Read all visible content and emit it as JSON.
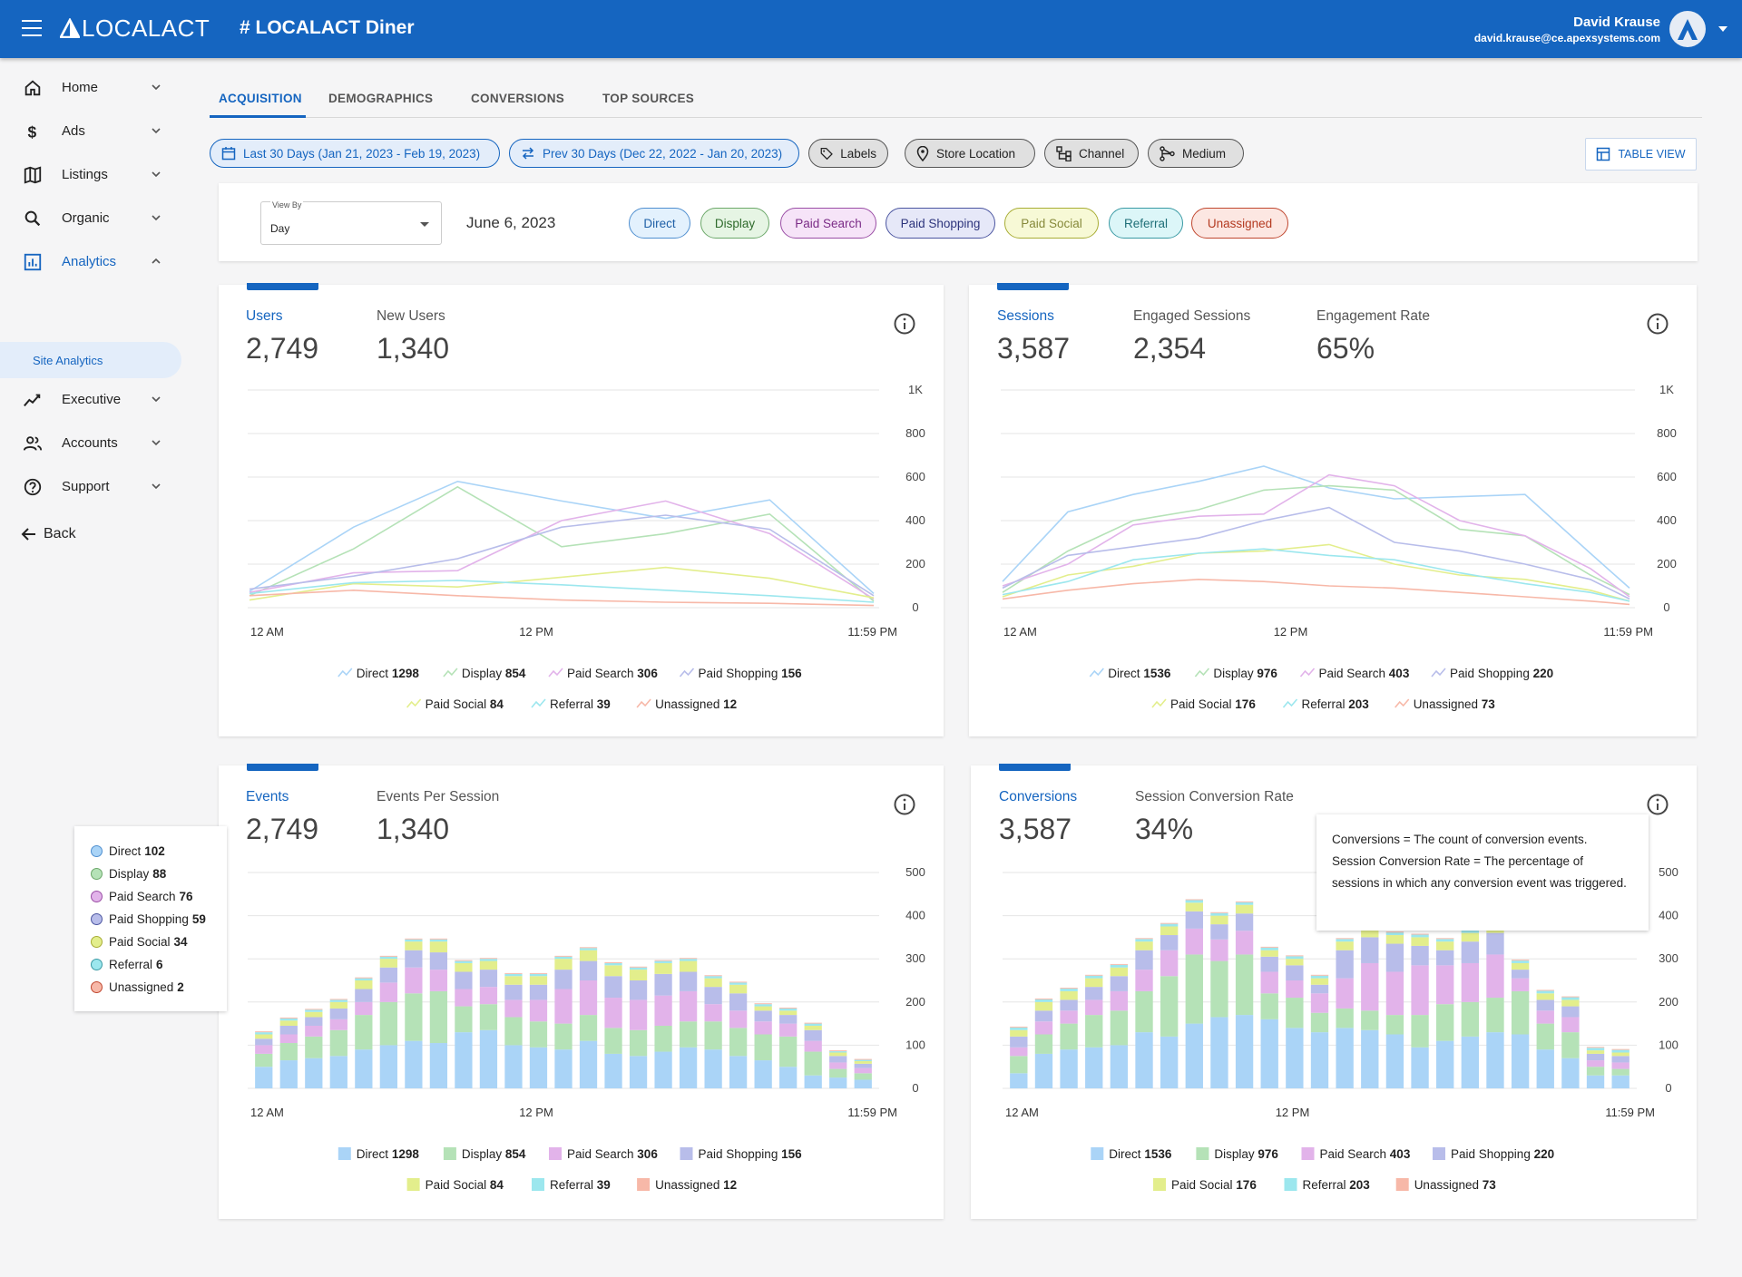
{
  "header": {
    "logo": "LOCALACT",
    "title": "# LOCALACT Diner",
    "user_name": "David Krause",
    "user_email": "david.krause@ce.apexsystems.com"
  },
  "sidebar": {
    "items": [
      {
        "label": "Home",
        "icon": "home-icon"
      },
      {
        "label": "Ads",
        "icon": "dollar-icon"
      },
      {
        "label": "Listings",
        "icon": "map-icon"
      },
      {
        "label": "Organic",
        "icon": "search-icon"
      },
      {
        "label": "Analytics",
        "icon": "analytics-icon"
      },
      {
        "label": "Executive",
        "icon": "trend-icon"
      },
      {
        "label": "Accounts",
        "icon": "people-icon"
      },
      {
        "label": "Support",
        "icon": "help-icon"
      }
    ],
    "sub_item": "Site Analytics",
    "back": "Back"
  },
  "tabs": [
    "ACQUISITION",
    "DEMOGRAPHICS",
    "CONVERSIONS",
    "TOP SOURCES"
  ],
  "filters": {
    "date_range": "Last 30 Days (Jan 21, 2023 - Feb 19, 2023)",
    "compare_range": "Prev 30 Days (Dec 22, 2022 - Jan 20, 2023)",
    "labels": "Labels",
    "store_location": "Store Location",
    "channel": "Channel",
    "medium": "Medium",
    "table_view": "TABLE VIEW"
  },
  "filter_bar": {
    "view_by_label": "View By",
    "view_by_value": "Day",
    "date": "June 6, 2023",
    "channels": [
      "Direct",
      "Display",
      "Paid Search",
      "Paid Shopping",
      "Paid Social",
      "Referral",
      "Unassigned"
    ]
  },
  "colors": {
    "accent": "#1565c0",
    "series": [
      "#aad4f7",
      "#b5e2b7",
      "#e2b3ea",
      "#b8bdea",
      "#e3ee8c",
      "#9ce7ee",
      "#f7b8a8"
    ],
    "pill_bg": [
      "#e3f1fd",
      "#e6f5e4",
      "#f6e4f8",
      "#e6e8f8",
      "#f7f9d6",
      "#dcf6f8",
      "#fce7e2"
    ],
    "pill_border": [
      "#4f8fd0",
      "#6ca86a",
      "#9a4ea5",
      "#4b55a0",
      "#a8ad35",
      "#3a9aa4",
      "#c0472f"
    ],
    "pill_text": [
      "#1e5fa6",
      "#2f6b2c",
      "#7a2b86",
      "#2d347c",
      "#86893a",
      "#1f6f78",
      "#b43a20"
    ]
  },
  "cards": {
    "users": {
      "metrics": [
        {
          "label": "Users",
          "value": "2,749"
        },
        {
          "label": "New Users",
          "value": "1,340"
        }
      ],
      "legend": [
        {
          "name": "Direct",
          "value": "1298"
        },
        {
          "name": "Display",
          "value": "854"
        },
        {
          "name": "Paid Search",
          "value": "306"
        },
        {
          "name": "Paid Shopping",
          "value": "156"
        },
        {
          "name": "Paid Social",
          "value": "84"
        },
        {
          "name": "Referral",
          "value": "39"
        },
        {
          "name": "Unassigned",
          "value": "12"
        }
      ]
    },
    "sessions": {
      "metrics": [
        {
          "label": "Sessions",
          "value": "3,587"
        },
        {
          "label": "Engaged Sessions",
          "value": "2,354"
        },
        {
          "label": "Engagement Rate",
          "value": "65%"
        }
      ],
      "legend": [
        {
          "name": "Direct",
          "value": "1536"
        },
        {
          "name": "Display",
          "value": "976"
        },
        {
          "name": "Paid Search",
          "value": "403"
        },
        {
          "name": "Paid Shopping",
          "value": "220"
        },
        {
          "name": "Paid Social",
          "value": "176"
        },
        {
          "name": "Referral",
          "value": "203"
        },
        {
          "name": "Unassigned",
          "value": "73"
        }
      ]
    },
    "events": {
      "metrics": [
        {
          "label": "Events",
          "value": "2,749"
        },
        {
          "label": "Events Per Session",
          "value": "1,340"
        }
      ],
      "legend": [
        {
          "name": "Direct",
          "value": "1298"
        },
        {
          "name": "Display",
          "value": "854"
        },
        {
          "name": "Paid Search",
          "value": "306"
        },
        {
          "name": "Paid Shopping",
          "value": "156"
        },
        {
          "name": "Paid Social",
          "value": "84"
        },
        {
          "name": "Referral",
          "value": "39"
        },
        {
          "name": "Unassigned",
          "value": "12"
        }
      ]
    },
    "conversions": {
      "metrics": [
        {
          "label": "Conversions",
          "value": "3,587"
        },
        {
          "label": "Session Conversion Rate",
          "value": "34%"
        }
      ],
      "legend": [
        {
          "name": "Direct",
          "value": "1536"
        },
        {
          "name": "Display",
          "value": "976"
        },
        {
          "name": "Paid Search",
          "value": "403"
        },
        {
          "name": "Paid Shopping",
          "value": "220"
        },
        {
          "name": "Paid Social",
          "value": "176"
        },
        {
          "name": "Referral",
          "value": "203"
        },
        {
          "name": "Unassigned",
          "value": "73"
        }
      ],
      "tooltip": "Conversions = The count of conversion events. Session Conversion Rate = The percentage of sessions in which any conversion event was triggered."
    }
  },
  "hover_tooltip": [
    {
      "name": "Direct",
      "value": "102"
    },
    {
      "name": "Display",
      "value": "88"
    },
    {
      "name": "Paid Search",
      "value": "76"
    },
    {
      "name": "Paid Shopping",
      "value": "59"
    },
    {
      "name": "Paid Social",
      "value": "34"
    },
    {
      "name": "Referral",
      "value": "6"
    },
    {
      "name": "Unassigned",
      "value": "2"
    }
  ],
  "chart_data": [
    {
      "type": "line",
      "x_ticks": [
        "12 AM",
        "12 PM",
        "11:59 PM"
      ],
      "y_ticks": [
        "0",
        "200",
        "400",
        "600",
        "800",
        "1K"
      ],
      "ylim": [
        0,
        1000
      ],
      "x": [
        0,
        4,
        8,
        12,
        16,
        20,
        24
      ],
      "series": [
        {
          "name": "Direct",
          "values": [
            75,
            370,
            580,
            490,
            410,
            495,
            65
          ]
        },
        {
          "name": "Display",
          "values": [
            55,
            270,
            555,
            280,
            340,
            430,
            30
          ]
        },
        {
          "name": "Paid Search",
          "values": [
            70,
            160,
            170,
            400,
            490,
            340,
            40
          ]
        },
        {
          "name": "Paid Shopping",
          "values": [
            85,
            145,
            225,
            370,
            425,
            360,
            55
          ]
        },
        {
          "name": "Paid Social",
          "values": [
            35,
            110,
            95,
            140,
            185,
            135,
            45
          ]
        },
        {
          "name": "Referral",
          "values": [
            65,
            115,
            125,
            105,
            80,
            55,
            25
          ]
        },
        {
          "name": "Unassigned",
          "values": [
            55,
            80,
            55,
            35,
            25,
            20,
            10
          ]
        }
      ]
    },
    {
      "type": "line",
      "x_ticks": [
        "12 AM",
        "12 PM",
        "11:59 PM"
      ],
      "y_ticks": [
        "0",
        "200",
        "400",
        "600",
        "800",
        "1K"
      ],
      "ylim": [
        0,
        1000
      ],
      "x": [
        0,
        2.5,
        5,
        7.5,
        10,
        12.5,
        15,
        17.5,
        20,
        22.5,
        24
      ],
      "series": [
        {
          "name": "Direct",
          "values": [
            120,
            440,
            520,
            580,
            650,
            550,
            500,
            510,
            520,
            250,
            90
          ]
        },
        {
          "name": "Display",
          "values": [
            70,
            260,
            400,
            450,
            540,
            560,
            540,
            360,
            330,
            150,
            60
          ]
        },
        {
          "name": "Paid Search",
          "values": [
            100,
            200,
            380,
            420,
            430,
            610,
            560,
            400,
            330,
            180,
            50
          ]
        },
        {
          "name": "Paid Shopping",
          "values": [
            90,
            240,
            280,
            320,
            400,
            460,
            300,
            260,
            200,
            130,
            40
          ]
        },
        {
          "name": "Paid Social",
          "values": [
            50,
            150,
            190,
            250,
            260,
            290,
            200,
            150,
            130,
            80,
            30
          ]
        },
        {
          "name": "Referral",
          "values": [
            60,
            120,
            220,
            250,
            270,
            240,
            220,
            160,
            110,
            70,
            30
          ]
        },
        {
          "name": "Unassigned",
          "values": [
            40,
            80,
            110,
            130,
            120,
            100,
            90,
            70,
            50,
            30,
            15
          ]
        }
      ]
    },
    {
      "type": "bar",
      "stacked": true,
      "x_ticks": [
        "12 AM",
        "12 PM",
        "11:59 PM"
      ],
      "y_ticks": [
        "0",
        "100",
        "200",
        "300",
        "400",
        "500"
      ],
      "ylim": [
        0,
        500
      ],
      "series": [
        {
          "name": "Direct",
          "values": [
            50,
            65,
            70,
            75,
            90,
            100,
            110,
            105,
            130,
            135,
            100,
            95,
            90,
            110,
            80,
            75,
            85,
            95,
            90,
            75,
            65,
            50,
            30,
            25,
            20
          ]
        },
        {
          "name": "Display",
          "values": [
            30,
            40,
            50,
            60,
            80,
            100,
            110,
            120,
            60,
            60,
            65,
            60,
            60,
            60,
            60,
            60,
            60,
            60,
            65,
            65,
            60,
            70,
            55,
            20,
            15
          ]
        },
        {
          "name": "Paid Search",
          "values": [
            20,
            20,
            25,
            25,
            30,
            45,
            60,
            50,
            40,
            40,
            40,
            50,
            80,
            80,
            70,
            70,
            70,
            70,
            40,
            40,
            30,
            30,
            25,
            15,
            12
          ]
        },
        {
          "name": "Paid Shopping",
          "values": [
            15,
            20,
            20,
            25,
            30,
            35,
            40,
            40,
            40,
            40,
            35,
            35,
            45,
            45,
            50,
            45,
            50,
            45,
            40,
            40,
            25,
            20,
            25,
            15,
            10
          ]
        },
        {
          "name": "Paid Social",
          "values": [
            10,
            12,
            12,
            15,
            20,
            20,
            20,
            25,
            20,
            20,
            20,
            20,
            25,
            25,
            25,
            25,
            25,
            25,
            20,
            20,
            10,
            10,
            10,
            8,
            6
          ]
        },
        {
          "name": "Referral",
          "values": [
            5,
            5,
            5,
            5,
            5,
            5,
            5,
            5,
            5,
            5,
            5,
            5,
            5,
            5,
            5,
            5,
            5,
            5,
            5,
            5,
            5,
            5,
            5,
            3,
            3
          ]
        },
        {
          "name": "Unassigned",
          "values": [
            2,
            2,
            2,
            2,
            2,
            2,
            2,
            2,
            2,
            2,
            2,
            2,
            2,
            2,
            2,
            2,
            2,
            2,
            2,
            2,
            2,
            2,
            2,
            2,
            2
          ]
        }
      ]
    },
    {
      "type": "bar",
      "stacked": true,
      "x_ticks": [
        "12 AM",
        "12 PM",
        "11:59 PM"
      ],
      "y_ticks": [
        "0",
        "100",
        "200",
        "300",
        "400",
        "500"
      ],
      "ylim": [
        0,
        500
      ],
      "series": [
        {
          "name": "Direct",
          "values": [
            35,
            80,
            90,
            95,
            100,
            130,
            120,
            150,
            165,
            170,
            160,
            140,
            130,
            140,
            135,
            125,
            95,
            110,
            120,
            130,
            125,
            90,
            70,
            30,
            30
          ]
        },
        {
          "name": "Display",
          "values": [
            40,
            45,
            60,
            75,
            80,
            95,
            140,
            160,
            130,
            140,
            60,
            70,
            45,
            45,
            45,
            45,
            75,
            85,
            80,
            80,
            100,
            60,
            60,
            20,
            15
          ]
        },
        {
          "name": "Paid Search",
          "values": [
            20,
            30,
            30,
            35,
            45,
            50,
            60,
            60,
            50,
            55,
            50,
            40,
            45,
            70,
            110,
            100,
            115,
            90,
            90,
            100,
            30,
            30,
            35,
            15,
            15
          ]
        },
        {
          "name": "Paid Shopping",
          "values": [
            25,
            25,
            25,
            30,
            35,
            45,
            35,
            40,
            35,
            40,
            35,
            35,
            20,
            65,
            60,
            65,
            45,
            35,
            50,
            50,
            20,
            25,
            25,
            15,
            15
          ]
        },
        {
          "name": "Paid Social",
          "values": [
            15,
            20,
            20,
            20,
            20,
            20,
            20,
            20,
            20,
            20,
            15,
            15,
            15,
            20,
            20,
            20,
            20,
            20,
            20,
            20,
            15,
            15,
            15,
            8,
            8
          ]
        },
        {
          "name": "Referral",
          "values": [
            6,
            6,
            6,
            6,
            6,
            6,
            6,
            6,
            6,
            6,
            6,
            6,
            6,
            6,
            6,
            6,
            6,
            6,
            6,
            6,
            6,
            6,
            6,
            6,
            6
          ]
        },
        {
          "name": "Unassigned",
          "values": [
            2,
            2,
            2,
            2,
            2,
            2,
            2,
            2,
            2,
            2,
            2,
            2,
            2,
            2,
            2,
            2,
            2,
            2,
            2,
            2,
            2,
            2,
            2,
            2,
            2
          ]
        }
      ]
    }
  ]
}
